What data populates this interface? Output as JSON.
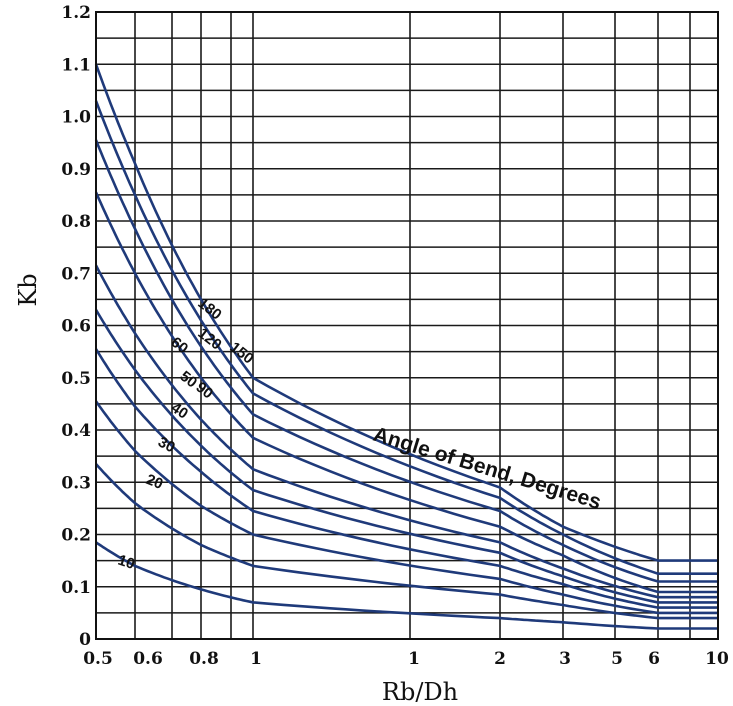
{
  "chart_data": {
    "type": "line",
    "title": "",
    "xlabel": "Rb/Dh",
    "ylabel": "Kb",
    "ylim": [
      0,
      1.2
    ],
    "grid": true,
    "legend": "none",
    "line_color": "#1f3a7a",
    "annotation": "Angle of Bend, Degrees",
    "x_tick_labels": [
      "0.5",
      "0.6",
      "0.8",
      "1",
      "1",
      "2",
      "3",
      "5",
      "6",
      "10"
    ],
    "y_tick_labels": [
      "0",
      "0.1",
      "0.2",
      "0.3",
      "0.4",
      "0.5",
      "0.6",
      "0.7",
      "0.8",
      "0.9",
      "1.0",
      "1.1",
      "1.2"
    ],
    "series": [
      {
        "name": "10",
        "points": [
          [
            0.5,
            0.185
          ],
          [
            0.6,
            0.14
          ],
          [
            0.8,
            0.095
          ],
          [
            1,
            0.07
          ],
          [
            2,
            0.04
          ],
          [
            3,
            0.032
          ],
          [
            6,
            0.02
          ],
          [
            10,
            0.02
          ]
        ]
      },
      {
        "name": "20",
        "points": [
          [
            0.5,
            0.335
          ],
          [
            0.6,
            0.26
          ],
          [
            0.8,
            0.18
          ],
          [
            1,
            0.14
          ],
          [
            2,
            0.085
          ],
          [
            3,
            0.065
          ],
          [
            6,
            0.04
          ],
          [
            10,
            0.04
          ]
        ]
      },
      {
        "name": "30",
        "points": [
          [
            0.5,
            0.455
          ],
          [
            0.6,
            0.36
          ],
          [
            0.8,
            0.255
          ],
          [
            1,
            0.2
          ],
          [
            2,
            0.115
          ],
          [
            3,
            0.085
          ],
          [
            6,
            0.05
          ],
          [
            10,
            0.05
          ]
        ]
      },
      {
        "name": "40",
        "points": [
          [
            0.5,
            0.555
          ],
          [
            0.6,
            0.445
          ],
          [
            0.8,
            0.32
          ],
          [
            1,
            0.245
          ],
          [
            2,
            0.14
          ],
          [
            3,
            0.105
          ],
          [
            6,
            0.06
          ],
          [
            10,
            0.06
          ]
        ]
      },
      {
        "name": "50",
        "points": [
          [
            0.5,
            0.63
          ],
          [
            0.6,
            0.515
          ],
          [
            0.8,
            0.37
          ],
          [
            1,
            0.285
          ],
          [
            2,
            0.165
          ],
          [
            3,
            0.12
          ],
          [
            6,
            0.07
          ],
          [
            10,
            0.07
          ]
        ]
      },
      {
        "name": "60",
        "points": [
          [
            0.5,
            0.715
          ],
          [
            0.6,
            0.585
          ],
          [
            0.8,
            0.42
          ],
          [
            1,
            0.325
          ],
          [
            2,
            0.185
          ],
          [
            3,
            0.135
          ],
          [
            6,
            0.08
          ],
          [
            10,
            0.08
          ]
        ]
      },
      {
        "name": "90",
        "points": [
          [
            0.5,
            0.855
          ],
          [
            0.6,
            0.7
          ],
          [
            0.8,
            0.5
          ],
          [
            1,
            0.385
          ],
          [
            2,
            0.215
          ],
          [
            3,
            0.16
          ],
          [
            6,
            0.09
          ],
          [
            10,
            0.09
          ]
        ]
      },
      {
        "name": "120",
        "points": [
          [
            0.5,
            0.955
          ],
          [
            0.6,
            0.785
          ],
          [
            0.8,
            0.56
          ],
          [
            1,
            0.43
          ],
          [
            2,
            0.245
          ],
          [
            3,
            0.18
          ],
          [
            6,
            0.11
          ],
          [
            10,
            0.11
          ]
        ]
      },
      {
        "name": "150",
        "points": [
          [
            0.5,
            1.03
          ],
          [
            0.6,
            0.85
          ],
          [
            0.8,
            0.61
          ],
          [
            1,
            0.47
          ],
          [
            2,
            0.27
          ],
          [
            3,
            0.2
          ],
          [
            6,
            0.125
          ],
          [
            10,
            0.125
          ]
        ]
      },
      {
        "name": "180",
        "points": [
          [
            0.5,
            1.1
          ],
          [
            0.6,
            0.91
          ],
          [
            0.8,
            0.65
          ],
          [
            1,
            0.5
          ],
          [
            2,
            0.29
          ],
          [
            3,
            0.215
          ],
          [
            6,
            0.15
          ],
          [
            10,
            0.15
          ]
        ]
      }
    ]
  }
}
